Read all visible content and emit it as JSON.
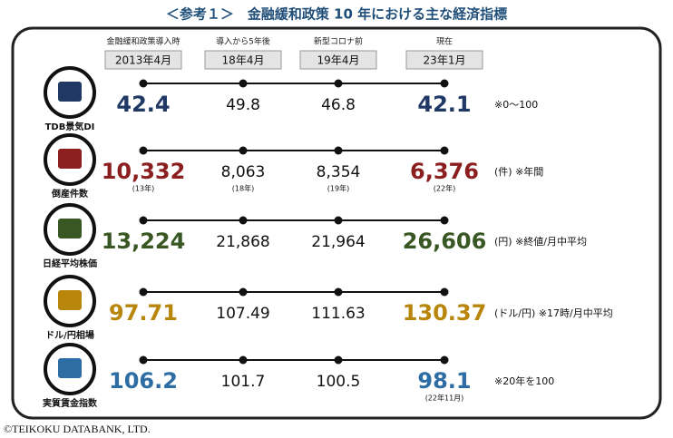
{
  "title": "＜参考１＞　金融緩和政策 10 年における主な経済指標",
  "columns": [
    {
      "label": "金融緩和政策導入時",
      "period": "2013年4月"
    },
    {
      "label": "導入から5年後",
      "period": "18年4月"
    },
    {
      "label": "新型コロナ前",
      "period": "19年4月"
    },
    {
      "label": "現在",
      "period": "23年1月"
    }
  ],
  "rows": [
    {
      "label": "TDB景気DI",
      "color": "#1f3864",
      "values": [
        {
          "text": "42.4"
        },
        {
          "text": "49.8"
        },
        {
          "text": "46.8"
        },
        {
          "text": "42.1"
        }
      ],
      "note": "※0～100"
    },
    {
      "label": "倒産件数",
      "color": "#8b1e1e",
      "values": [
        {
          "text": "10,332",
          "sub": "(13年)"
        },
        {
          "text": "8,063",
          "sub": "(18年)"
        },
        {
          "text": "8,354",
          "sub": "(19年)"
        },
        {
          "text": "6,376",
          "sub": "(22年)"
        }
      ],
      "note": "(件) ※年間"
    },
    {
      "label": "日経平均株価",
      "color": "#385723",
      "values": [
        {
          "text": "13,224"
        },
        {
          "text": "21,868"
        },
        {
          "text": "21,964"
        },
        {
          "text": "26,606"
        }
      ],
      "note": "(円) ※終値/月中平均"
    },
    {
      "label": "ドル/円相場",
      "color": "#b8860b",
      "values": [
        {
          "text": "97.71"
        },
        {
          "text": "107.49"
        },
        {
          "text": "111.63"
        },
        {
          "text": "130.37"
        }
      ],
      "note": "(ドル/円) ※17時/月中平均"
    },
    {
      "label": "実質賃金指数",
      "color": "#2e6da4",
      "values": [
        {
          "text": "106.2"
        },
        {
          "text": "101.7"
        },
        {
          "text": "100.5"
        },
        {
          "text": "98.1",
          "sub": "(22年11月)"
        }
      ],
      "note": "※20年を100"
    }
  ],
  "copyright": "©TEIKOKU DATABANK, LTD."
}
